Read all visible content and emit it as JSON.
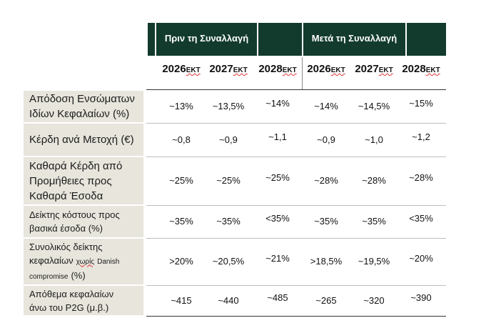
{
  "header": {
    "groups": [
      "Πριν τη Συναλλαγή",
      "Μετά τη Συναλλαγή"
    ],
    "years": [
      {
        "year": "2026",
        "suffix": "ΕΚΤ"
      },
      {
        "year": "2027",
        "suffix": "ΕΚΤ"
      },
      {
        "year": "2028",
        "suffix": "ΕΚΤ"
      },
      {
        "year": "2026",
        "suffix": "ΕΚΤ"
      },
      {
        "year": "2027",
        "suffix": "ΕΚΤ"
      },
      {
        "year": "2028",
        "suffix": "ΕΚΤ"
      }
    ]
  },
  "table": {
    "rows": [
      {
        "label": [
          [
            {
              "text": "Απόδοση Ενσώματων"
            }
          ],
          [
            {
              "text": "Ιδίων Κεφαλαίων (%)"
            }
          ]
        ],
        "size": "large",
        "cells": [
          "~13%",
          "~13,5%",
          "~14%",
          "~14%",
          "~14,5%",
          "~15%"
        ]
      },
      {
        "label": [
          [
            {
              "text": "Κέρδη ανά Μετοχή (€)"
            }
          ]
        ],
        "size": "large",
        "cells": [
          "~0,8",
          "~0,9",
          "~1,1",
          "~0,9",
          "~1,0",
          "~1,2"
        ]
      },
      {
        "label": [
          [
            {
              "text": "Καθαρά Κέρδη από"
            }
          ],
          [
            {
              "text": "Προμήθειες προς"
            }
          ],
          [
            {
              "text": "Καθαρά Έσοδα"
            }
          ]
        ],
        "size": "large",
        "cells": [
          "~25%",
          "~25%",
          "~25%",
          "~28%",
          "~28%",
          "~28%"
        ]
      },
      {
        "label": [
          [
            {
              "text": "Δείκτης κόστους προς"
            }
          ],
          [
            {
              "text": "βασικά έσοδα (%)"
            }
          ]
        ],
        "size": "medium",
        "cells": [
          "~35%",
          "~35%",
          "<35%",
          "~35%",
          "~35%",
          "<35%"
        ]
      },
      {
        "label": [
          [
            {
              "text": "Συνολικός δείκτης"
            }
          ],
          [
            {
              "text": "κεφαλαίων"
            },
            {
              "text": "χωρίς",
              "small": true,
              "spell": true
            },
            {
              "text": "Danish",
              "small": true
            }
          ],
          [
            {
              "text": "compromise",
              "small": true
            },
            {
              "text": "(%)"
            }
          ]
        ],
        "size": "medium",
        "cells": [
          ">20%",
          "~20,5%",
          "~21%",
          ">18,5%",
          "~19,5%",
          "~20%"
        ]
      },
      {
        "label": [
          [
            {
              "text": "Απόθεμα κεφαλαίων"
            }
          ],
          [
            {
              "text": "άνω του P2G (μ.β.)"
            }
          ]
        ],
        "size": "medium",
        "cells": [
          "~415",
          "~440",
          "~485",
          "~265",
          "~320",
          "~390"
        ]
      }
    ]
  }
}
